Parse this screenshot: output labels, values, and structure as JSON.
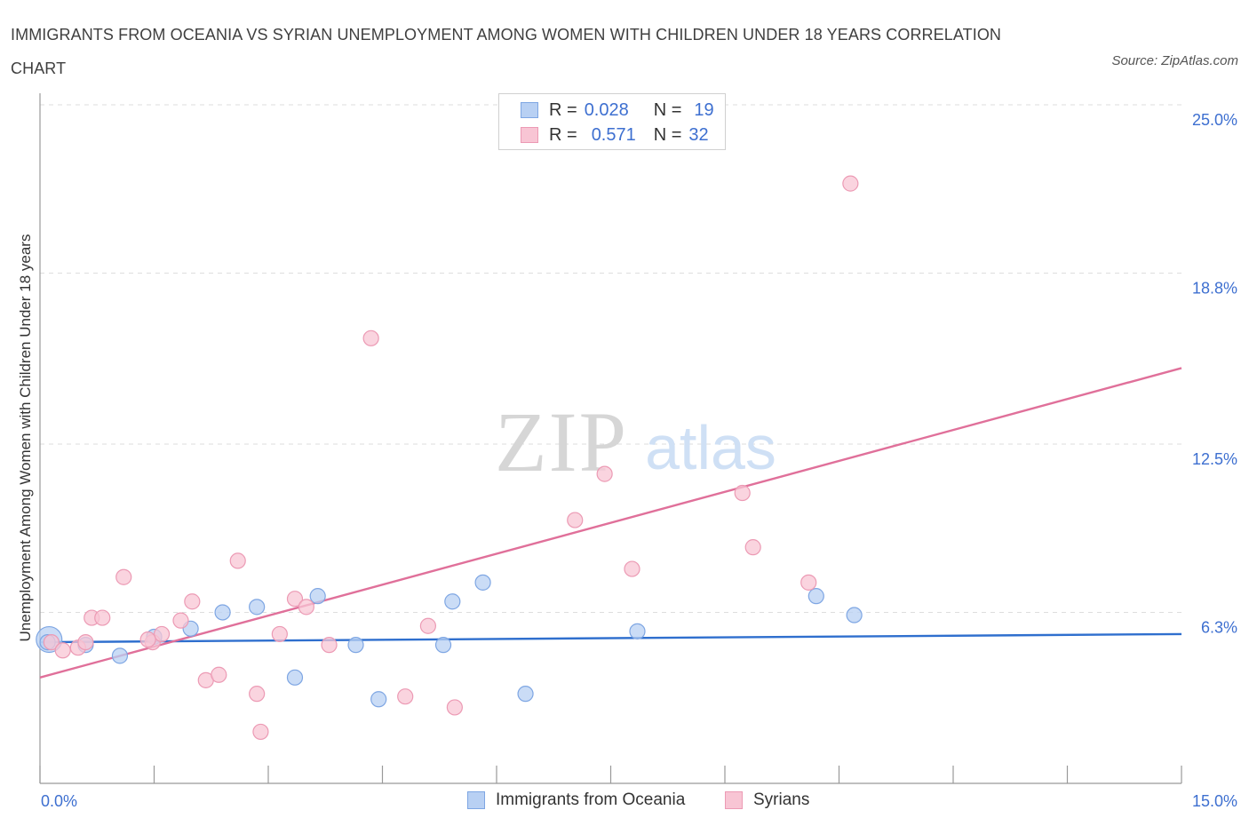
{
  "title": "IMMIGRANTS FROM OCEANIA VS SYRIAN UNEMPLOYMENT AMONG WOMEN WITH CHILDREN UNDER 18 YEARS CORRELATION CHART",
  "source": "Source: ZipAtlas.com",
  "watermark": {
    "zip": "ZIP",
    "atlas": "atlas"
  },
  "legend_top": [
    {
      "r_label": "R =",
      "r_value": "0.028",
      "n_label": "N =",
      "n_value": "19"
    },
    {
      "r_label": "R =",
      "r_value": "0.571",
      "n_label": "N =",
      "n_value": "32"
    }
  ],
  "colors": {
    "oceania_fill": "#b8d0f3",
    "oceania_stroke": "#7ea6e3",
    "oceania_line": "#2f6fce",
    "syrians_fill": "#f8c5d4",
    "syrians_stroke": "#ec9ab4",
    "syrians_line": "#e0709a",
    "tick_label": "#3d6fd0",
    "grid": "#dddddd"
  },
  "chart_data": {
    "type": "scatter",
    "title": "IMMIGRANTS FROM OCEANIA VS SYRIAN UNEMPLOYMENT AMONG WOMEN WITH CHILDREN UNDER 18 YEARS CORRELATION CHART",
    "xlabel": "",
    "ylabel": "Unemployment Among Women with Children Under 18 years",
    "xlim": [
      0,
      15
    ],
    "ylim": [
      0,
      25
    ],
    "y_ticks": [
      6.3,
      12.5,
      18.8,
      25.0
    ],
    "y_tick_labels": [
      "6.3%",
      "12.5%",
      "18.8%",
      "25.0%"
    ],
    "x_tick_labels": [
      "0.0%",
      "15.0%"
    ],
    "grid": true,
    "legend_position": "bottom",
    "series": [
      {
        "name": "Immigrants from Oceania",
        "x": [
          0.12,
          0.6,
          1.05,
          1.5,
          1.98,
          2.4,
          2.85,
          3.35,
          3.65,
          4.15,
          4.45,
          5.3,
          5.42,
          5.82,
          6.38,
          7.85,
          10.2,
          10.7,
          0.1
        ],
        "y": [
          5.3,
          5.1,
          4.7,
          5.4,
          5.7,
          6.3,
          6.5,
          3.9,
          6.9,
          5.1,
          3.1,
          5.1,
          6.7,
          7.4,
          3.3,
          5.6,
          6.9,
          6.2,
          5.2
        ],
        "sizes": [
          1.7,
          1,
          1,
          1,
          1,
          1,
          1,
          1,
          1,
          1,
          1,
          1,
          1,
          1,
          1,
          1,
          1,
          1,
          1
        ],
        "trend": {
          "x": [
            0,
            15
          ],
          "y": [
            5.2,
            5.5
          ]
        }
      },
      {
        "name": "Syrians",
        "x": [
          0.15,
          0.3,
          0.5,
          0.68,
          0.82,
          1.1,
          1.48,
          1.6,
          1.85,
          2.0,
          2.18,
          2.35,
          2.6,
          2.85,
          2.9,
          3.15,
          3.35,
          3.5,
          3.8,
          4.35,
          4.8,
          5.1,
          5.45,
          7.03,
          7.42,
          7.78,
          9.23,
          9.37,
          10.1,
          10.65,
          0.6,
          1.42
        ],
        "y": [
          5.2,
          4.9,
          5.0,
          6.1,
          6.1,
          7.6,
          5.2,
          5.5,
          6.0,
          6.7,
          3.8,
          4.0,
          8.2,
          3.3,
          1.9,
          5.5,
          6.8,
          6.5,
          5.1,
          16.4,
          3.2,
          5.8,
          2.8,
          9.7,
          11.4,
          7.9,
          10.7,
          8.7,
          7.4,
          22.1,
          5.2,
          5.3
        ],
        "sizes": [
          1,
          1,
          1,
          1,
          1,
          1,
          1,
          1,
          1,
          1,
          1,
          1,
          1,
          1,
          1,
          1,
          1,
          1,
          1,
          1,
          1,
          1,
          1,
          1,
          1,
          1,
          1,
          1,
          1,
          1,
          1,
          1
        ],
        "trend": {
          "x": [
            0,
            15
          ],
          "y": [
            3.9,
            15.3
          ]
        }
      }
    ]
  },
  "legend_bottom": [
    {
      "label": "Immigrants from Oceania"
    },
    {
      "label": "Syrians"
    }
  ]
}
